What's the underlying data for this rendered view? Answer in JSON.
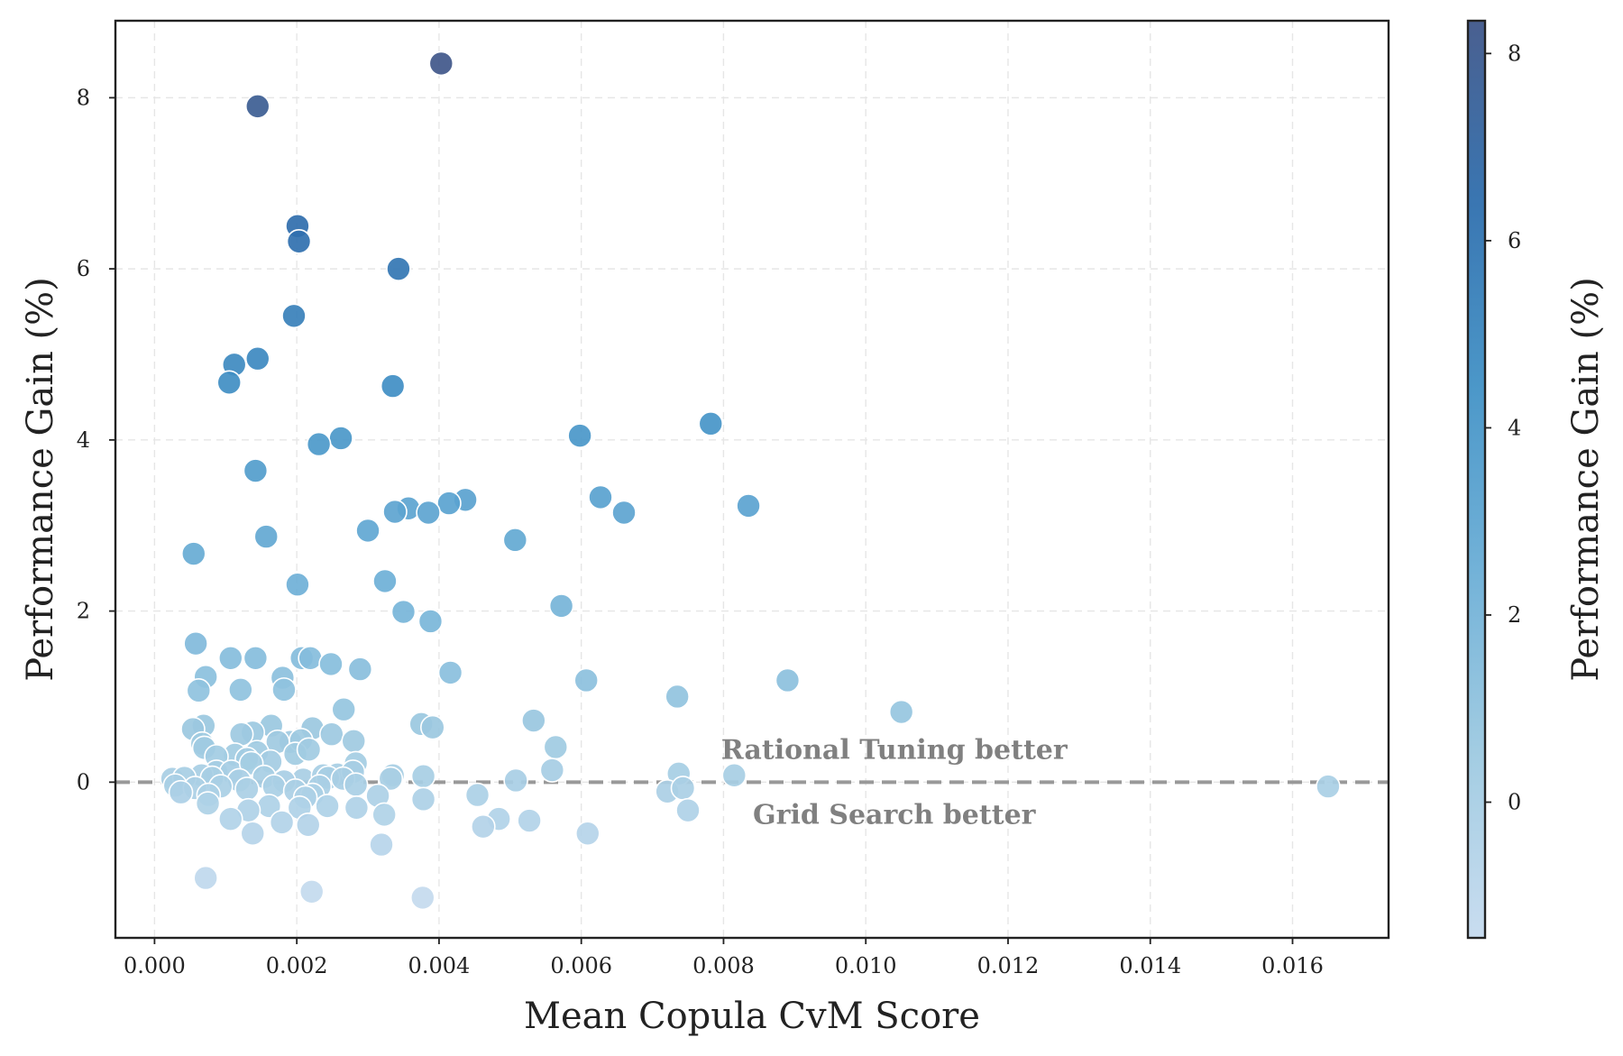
{
  "chart_data": {
    "type": "scatter",
    "title": "",
    "xlabel": "Mean Copula CvM Score",
    "ylabel": "Performance Gain (%)",
    "xlim": [
      -0.00055,
      0.01735
    ],
    "ylim": [
      -1.82,
      8.9
    ],
    "xticks": [
      0.0,
      0.002,
      0.004,
      0.006,
      0.008,
      0.01,
      0.012,
      0.014,
      0.016
    ],
    "xtick_labels": [
      "0.000",
      "0.002",
      "0.004",
      "0.006",
      "0.008",
      "0.010",
      "0.012",
      "0.014",
      "0.016"
    ],
    "yticks": [
      0,
      2,
      4,
      6,
      8
    ],
    "ytick_labels": [
      "0",
      "2",
      "4",
      "6",
      "8"
    ],
    "grid": true,
    "reference_line": {
      "y": 0,
      "style": "dashed",
      "color": "#999999"
    },
    "annotations": [
      {
        "text": "Rational Tuning better",
        "x": 0.0104,
        "y": 0.38
      },
      {
        "text": "Grid Search better",
        "x": 0.0104,
        "y": -0.38
      }
    ],
    "colorbar": {
      "label": "Performance Gain (%)",
      "range": [
        -1.45,
        8.35
      ],
      "ticks": [
        0,
        2,
        4,
        6,
        8
      ],
      "tick_labels": [
        "0",
        "2",
        "4",
        "6",
        "8"
      ],
      "cmap": [
        "#c6dbef",
        "#9ecae1",
        "#6baed6",
        "#4292c6",
        "#2f6fae",
        "#40578a"
      ]
    },
    "series": [
      {
        "name": "models",
        "points": [
          [
            0.00403,
            8.4
          ],
          [
            0.00145,
            7.9
          ],
          [
            0.00201,
            6.5
          ],
          [
            0.00203,
            6.32
          ],
          [
            0.00343,
            6.0
          ],
          [
            0.00196,
            5.45
          ],
          [
            0.00145,
            4.95
          ],
          [
            0.00112,
            4.88
          ],
          [
            0.00105,
            4.67
          ],
          [
            0.00335,
            4.63
          ],
          [
            0.00782,
            4.19
          ],
          [
            0.00598,
            4.05
          ],
          [
            0.00262,
            4.02
          ],
          [
            0.00231,
            3.95
          ],
          [
            0.00142,
            3.64
          ],
          [
            0.00437,
            3.3
          ],
          [
            0.00627,
            3.33
          ],
          [
            0.00835,
            3.23
          ],
          [
            0.00414,
            3.26
          ],
          [
            0.00357,
            3.2
          ],
          [
            0.00338,
            3.16
          ],
          [
            0.00385,
            3.15
          ],
          [
            0.0066,
            3.15
          ],
          [
            0.003,
            2.94
          ],
          [
            0.00157,
            2.87
          ],
          [
            0.00507,
            2.83
          ],
          [
            0.00055,
            2.67
          ],
          [
            0.00201,
            2.31
          ],
          [
            0.00324,
            2.35
          ],
          [
            0.00572,
            2.06
          ],
          [
            0.0035,
            1.99
          ],
          [
            0.00388,
            1.88
          ],
          [
            0.00058,
            1.62
          ],
          [
            0.00107,
            1.45
          ],
          [
            0.00142,
            1.45
          ],
          [
            0.00207,
            1.45
          ],
          [
            0.00219,
            1.45
          ],
          [
            0.00248,
            1.38
          ],
          [
            0.00289,
            1.32
          ],
          [
            0.00416,
            1.28
          ],
          [
            0.00072,
            1.23
          ],
          [
            0.0018,
            1.22
          ],
          [
            0.00607,
            1.19
          ],
          [
            0.0089,
            1.19
          ],
          [
            0.00062,
            1.07
          ],
          [
            0.00121,
            1.08
          ],
          [
            0.00182,
            1.08
          ],
          [
            0.00735,
            1.0
          ],
          [
            0.00266,
            0.85
          ],
          [
            0.0105,
            0.82
          ],
          [
            0.00533,
            0.72
          ],
          [
            0.00375,
            0.68
          ],
          [
            0.00391,
            0.64
          ],
          [
            0.00069,
            0.66
          ],
          [
            0.00164,
            0.66
          ],
          [
            0.00222,
            0.63
          ],
          [
            0.00054,
            0.62
          ],
          [
            0.00138,
            0.58
          ],
          [
            0.00122,
            0.56
          ],
          [
            0.00249,
            0.56
          ],
          [
            0.0028,
            0.48
          ],
          [
            0.00067,
            0.45
          ],
          [
            0.00191,
            0.47
          ],
          [
            0.00206,
            0.49
          ],
          [
            0.00173,
            0.47
          ],
          [
            0.00564,
            0.41
          ],
          [
            0.0007,
            0.4
          ],
          [
            0.00113,
            0.32
          ],
          [
            0.00144,
            0.35
          ],
          [
            0.00198,
            0.33
          ],
          [
            0.00217,
            0.38
          ],
          [
            0.00087,
            0.3
          ],
          [
            0.00283,
            0.22
          ],
          [
            0.0013,
            0.27
          ],
          [
            0.00163,
            0.24
          ],
          [
            0.00087,
            0.12
          ],
          [
            0.00066,
            0.08
          ],
          [
            0.00108,
            0.12
          ],
          [
            0.00136,
            0.22
          ],
          [
            0.00559,
            0.14
          ],
          [
            0.00335,
            0.08
          ],
          [
            0.00378,
            0.07
          ],
          [
            0.00257,
            0.09
          ],
          [
            0.00279,
            0.12
          ],
          [
            0.00737,
            0.1
          ],
          [
            0.00815,
            0.08
          ],
          [
            0.00025,
            0.04
          ],
          [
            0.00042,
            0.05
          ],
          [
            0.00081,
            0.05
          ],
          [
            0.00119,
            0.02
          ],
          [
            0.00154,
            0.06
          ],
          [
            0.00209,
            0.03
          ],
          [
            0.00237,
            0.08
          ],
          [
            0.00244,
            0.05
          ],
          [
            0.00265,
            0.04
          ],
          [
            0.00332,
            0.04
          ],
          [
            0.00508,
            0.02
          ],
          [
            0.00182,
            0.01
          ],
          [
            0.00029,
            -0.04
          ],
          [
            0.00057,
            -0.07
          ],
          [
            0.00093,
            -0.05
          ],
          [
            0.0013,
            -0.08
          ],
          [
            0.00168,
            -0.05
          ],
          [
            0.00198,
            -0.1
          ],
          [
            0.00232,
            -0.05
          ],
          [
            0.00283,
            -0.03
          ],
          [
            0.00037,
            -0.12
          ],
          [
            0.00076,
            -0.15
          ],
          [
            0.00222,
            -0.15
          ],
          [
            0.00212,
            -0.18
          ],
          [
            0.00314,
            -0.16
          ],
          [
            0.00378,
            -0.2
          ],
          [
            0.00454,
            -0.15
          ],
          [
            0.00721,
            -0.11
          ],
          [
            0.00743,
            -0.07
          ],
          [
            0.0165,
            -0.05
          ],
          [
            0.00075,
            -0.25
          ],
          [
            0.00161,
            -0.28
          ],
          [
            0.00204,
            -0.3
          ],
          [
            0.00243,
            -0.28
          ],
          [
            0.00284,
            -0.3
          ],
          [
            0.00132,
            -0.33
          ],
          [
            0.0075,
            -0.33
          ],
          [
            0.00323,
            -0.38
          ],
          [
            0.00484,
            -0.43
          ],
          [
            0.00107,
            -0.43
          ],
          [
            0.00179,
            -0.47
          ],
          [
            0.00216,
            -0.5
          ],
          [
            0.00462,
            -0.52
          ],
          [
            0.00527,
            -0.45
          ],
          [
            0.00138,
            -0.6
          ],
          [
            0.00609,
            -0.6
          ],
          [
            0.00319,
            -0.73
          ],
          [
            0.00072,
            -1.12
          ],
          [
            0.00221,
            -1.28
          ],
          [
            0.00377,
            -1.35
          ]
        ]
      }
    ]
  }
}
